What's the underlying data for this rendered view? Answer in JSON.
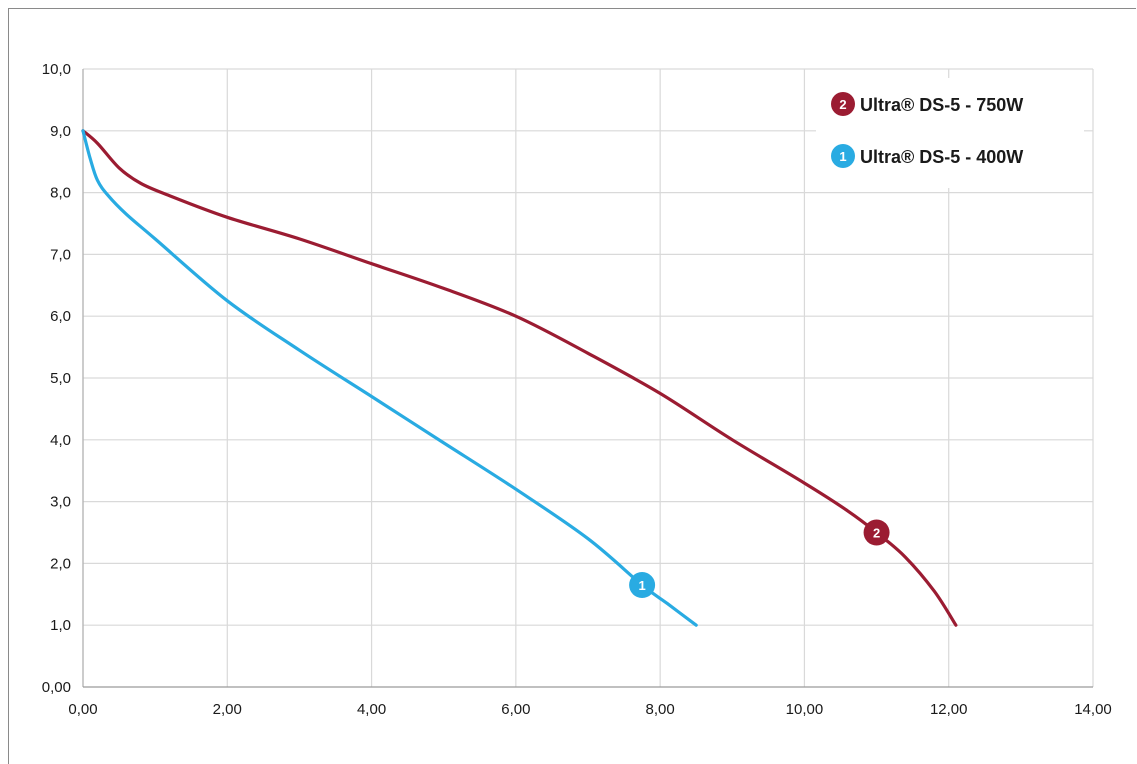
{
  "chart_data": {
    "type": "line",
    "title": "",
    "xlabel": "",
    "ylabel": "",
    "xlim": [
      0,
      14
    ],
    "ylim": [
      0,
      10
    ],
    "grid": true,
    "x_ticks": [
      0,
      2,
      4,
      6,
      8,
      10,
      12,
      14
    ],
    "x_tick_labels": [
      "0,00",
      "2,00",
      "4,00",
      "6,00",
      "8,00",
      "10,00",
      "12,00",
      "14,00"
    ],
    "y_ticks": [
      0,
      1,
      2,
      3,
      4,
      5,
      6,
      7,
      8,
      9,
      10
    ],
    "y_tick_labels": [
      "0,00",
      "1,0",
      "2,0",
      "3,0",
      "4,0",
      "5,0",
      "6,0",
      "7,0",
      "8,0",
      "9,0",
      "10,0"
    ],
    "legend_position": "top-right",
    "series": [
      {
        "name": "Ultra® DS-5 - 750W",
        "marker": "2",
        "color": "#9b1c32",
        "label_point": [
          11.0,
          2.5
        ],
        "points": [
          [
            0,
            9.0
          ],
          [
            0.2,
            8.8
          ],
          [
            0.5,
            8.4
          ],
          [
            0.8,
            8.15
          ],
          [
            1.2,
            7.95
          ],
          [
            2.0,
            7.6
          ],
          [
            3.0,
            7.25
          ],
          [
            4.0,
            6.85
          ],
          [
            5.0,
            6.45
          ],
          [
            6.0,
            6.0
          ],
          [
            7.0,
            5.4
          ],
          [
            8.0,
            4.75
          ],
          [
            9.0,
            4.0
          ],
          [
            10.0,
            3.3
          ],
          [
            10.6,
            2.85
          ],
          [
            11.0,
            2.5
          ],
          [
            11.4,
            2.1
          ],
          [
            11.8,
            1.55
          ],
          [
            12.1,
            1.0
          ]
        ]
      },
      {
        "name": "Ultra® DS-5 - 400W",
        "marker": "1",
        "color": "#29abe2",
        "label_point": [
          7.75,
          1.65
        ],
        "points": [
          [
            0,
            9.0
          ],
          [
            0.1,
            8.55
          ],
          [
            0.2,
            8.2
          ],
          [
            0.35,
            7.95
          ],
          [
            0.6,
            7.65
          ],
          [
            1.0,
            7.25
          ],
          [
            2.0,
            6.25
          ],
          [
            3.0,
            5.45
          ],
          [
            4.0,
            4.7
          ],
          [
            5.0,
            3.95
          ],
          [
            6.0,
            3.2
          ],
          [
            7.0,
            2.4
          ],
          [
            7.75,
            1.65
          ],
          [
            8.1,
            1.35
          ],
          [
            8.5,
            1.0
          ]
        ]
      }
    ]
  }
}
